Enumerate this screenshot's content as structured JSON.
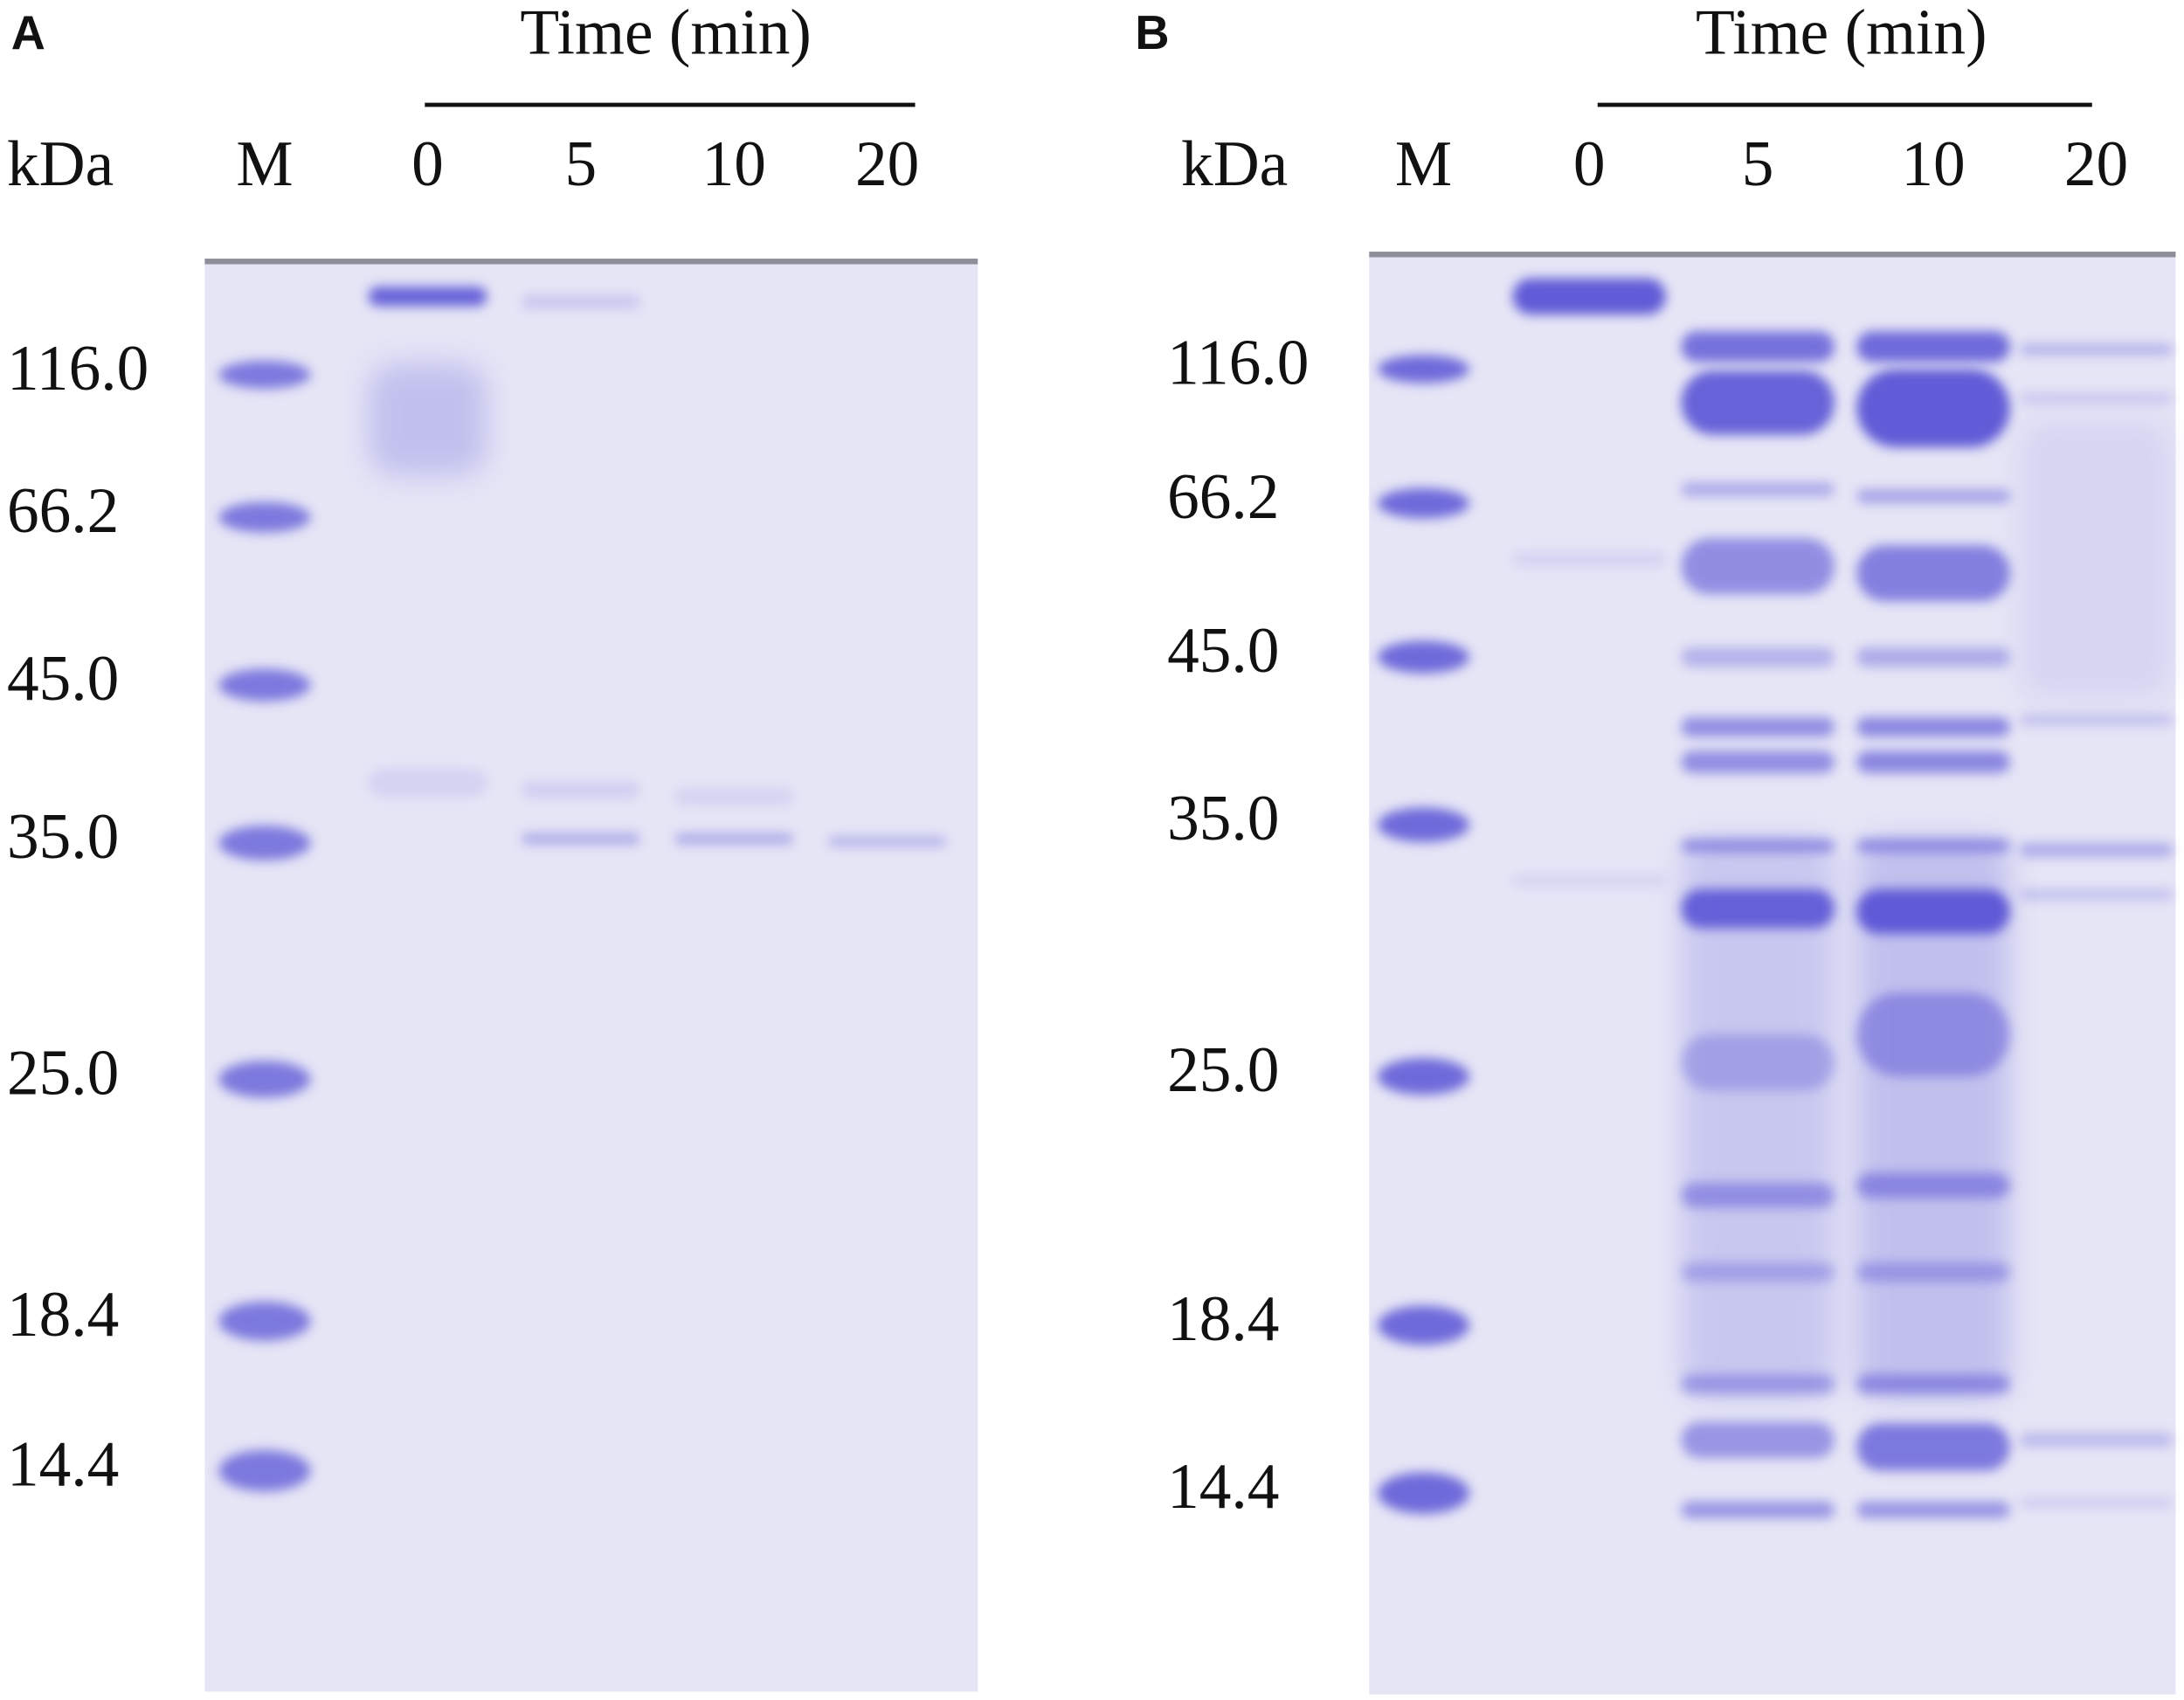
{
  "panels": [
    {
      "label": "A",
      "time_label": "Time (min)",
      "unit": "kDa",
      "lanes": [
        "M",
        "0",
        "5",
        "10",
        "20"
      ],
      "markers": [
        "116.0",
        "66.2",
        "45.0",
        "35.0",
        "25.0",
        "18.4",
        "14.4"
      ]
    },
    {
      "label": "B",
      "time_label": "Time (min)",
      "unit": "kDa",
      "lanes": [
        "M",
        "0",
        "5",
        "10",
        "20"
      ],
      "markers": [
        "116.0",
        "66.2",
        "45.0",
        "35.0",
        "25.0",
        "18.4",
        "14.4"
      ]
    }
  ]
}
